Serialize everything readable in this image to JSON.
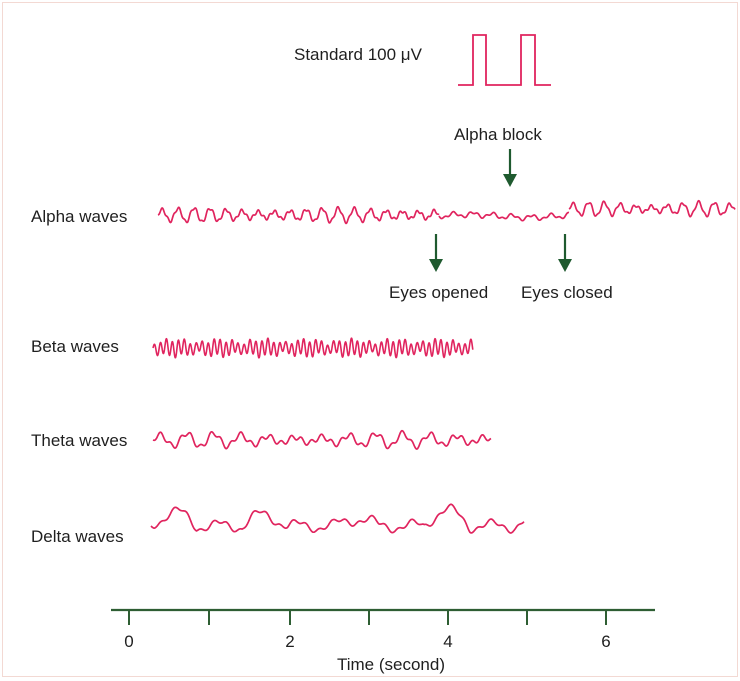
{
  "colors": {
    "wave": "#e0245e",
    "arrow": "#1f5a2f",
    "axis": "#2e5e33",
    "text": "#1f1f1f"
  },
  "calibration": {
    "label": "Standard 100 μV"
  },
  "annotations": {
    "alpha_block": "Alpha block",
    "eyes_opened": "Eyes opened",
    "eyes_closed": "Eyes closed"
  },
  "waves": [
    {
      "id": "alpha",
      "label": "Alpha waves"
    },
    {
      "id": "beta",
      "label": "Beta waves"
    },
    {
      "id": "theta",
      "label": "Theta waves"
    },
    {
      "id": "delta",
      "label": "Delta waves"
    }
  ],
  "axis": {
    "label": "Time (second)",
    "tick_labels": [
      "0",
      "2",
      "4",
      "6"
    ]
  }
}
